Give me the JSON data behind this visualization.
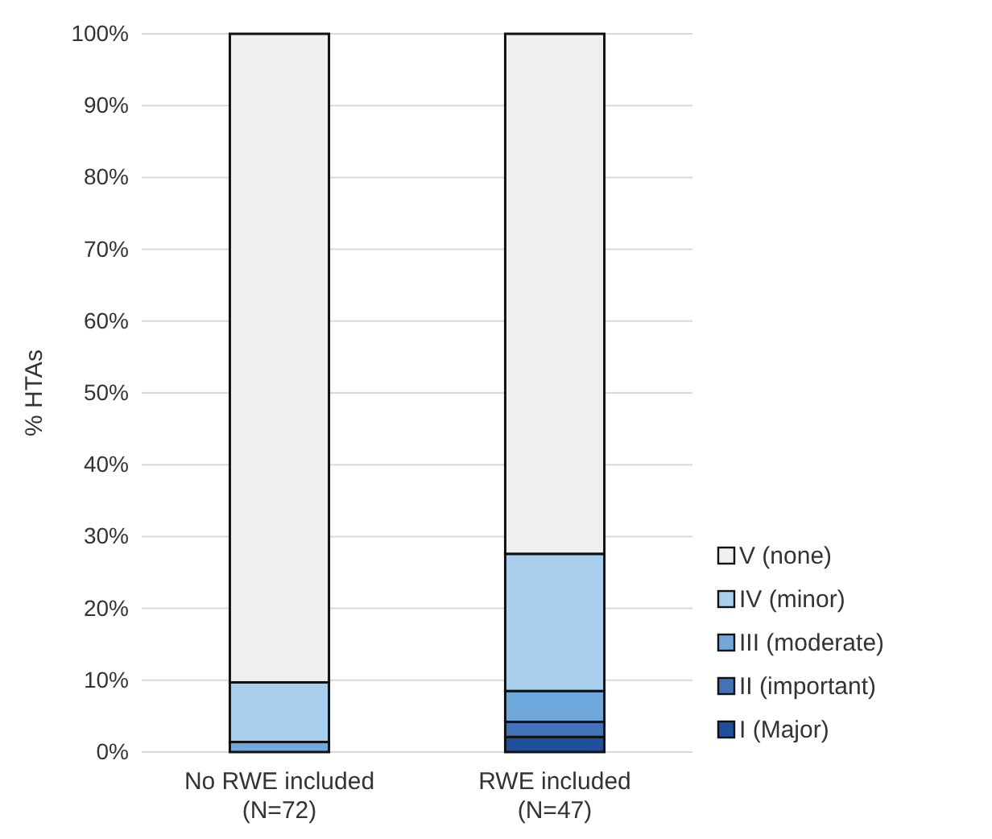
{
  "chart_data": {
    "type": "bar",
    "stacked": true,
    "ylabel": "% HTAs",
    "categories": [
      "No RWE included\n(N=72)",
      "RWE included\n(N=47)"
    ],
    "series": [
      {
        "name": "I (Major)",
        "color": "#1f4e9c",
        "values": [
          0,
          2.1
        ]
      },
      {
        "name": "II (important)",
        "color": "#4472b8",
        "values": [
          0,
          2.1
        ]
      },
      {
        "name": "III (moderate)",
        "color": "#6fa8dc",
        "values": [
          1.4,
          4.3
        ]
      },
      {
        "name": "IV (minor)",
        "color": "#a9cfee",
        "values": [
          8.3,
          19.1
        ]
      },
      {
        "name": "V (none)",
        "color": "#efefef",
        "values": [
          90.3,
          72.4
        ]
      }
    ],
    "ylim": [
      0,
      100
    ],
    "yticks": [
      {
        "value": 0,
        "label": "0%"
      },
      {
        "value": 10,
        "label": "10%"
      },
      {
        "value": 20,
        "label": "20%"
      },
      {
        "value": 30,
        "label": "30%"
      },
      {
        "value": 40,
        "label": "40%"
      },
      {
        "value": 50,
        "label": "50%"
      },
      {
        "value": 60,
        "label": "60%"
      },
      {
        "value": 70,
        "label": "70%"
      },
      {
        "value": 80,
        "label": "80%"
      },
      {
        "value": 90,
        "label": "90%"
      },
      {
        "value": 100,
        "label": "100%"
      }
    ],
    "grid": "y",
    "legend": "right"
  }
}
